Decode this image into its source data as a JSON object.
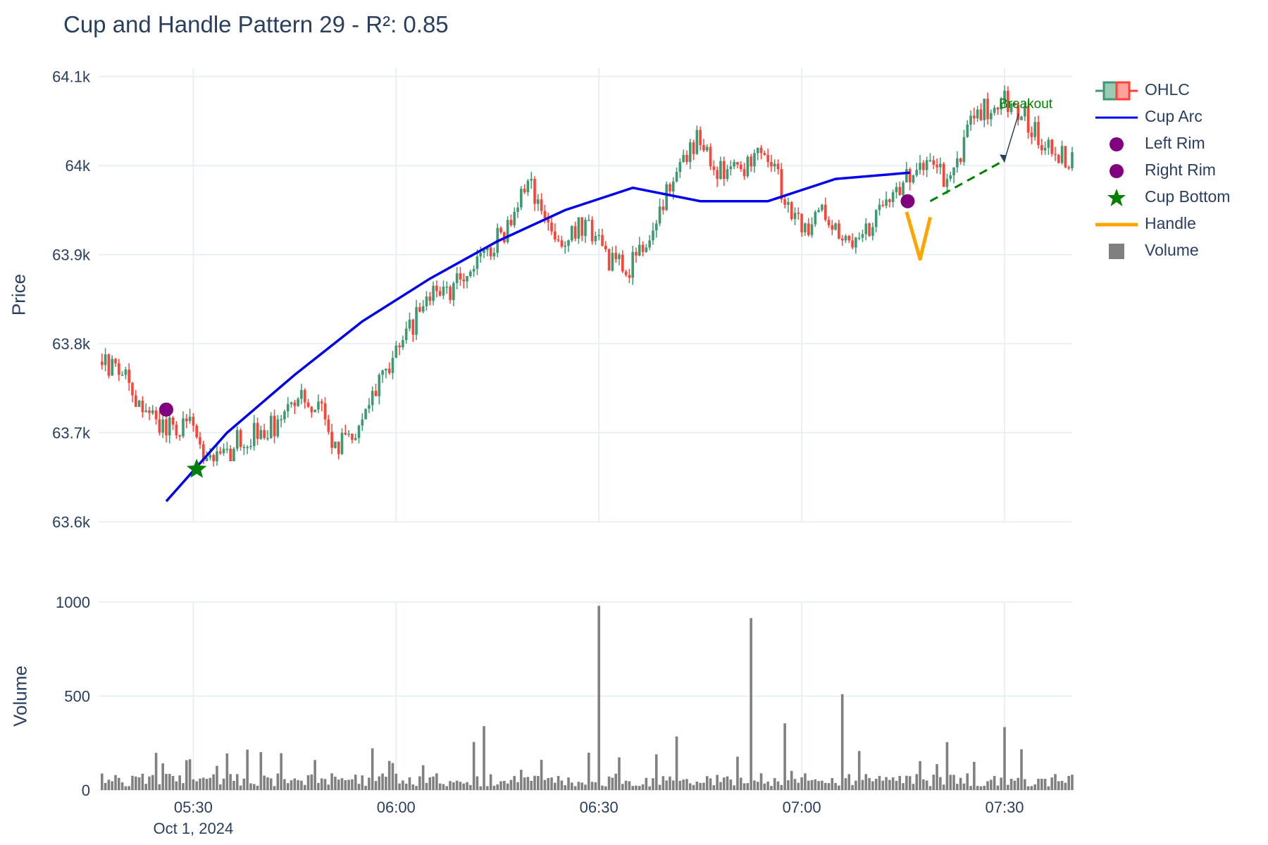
{
  "title": "Cup and Handle Pattern 29 - R²: 0.85",
  "colors": {
    "increasing": "#3d9970",
    "decreasing": "#ff4136",
    "cup_arc": "#0000ee",
    "rim": "#800080",
    "cup_bottom": "#008000",
    "handle": "#ffa500",
    "breakout": "#008000",
    "volume": "#808080",
    "grid": "#e5ecf6",
    "text": "#2a3f5f"
  },
  "legend": [
    {
      "name": "OHLC",
      "icon": "candlestick-icon"
    },
    {
      "name": "Cup Arc",
      "icon": "line-icon"
    },
    {
      "name": "Left Rim",
      "icon": "circle-marker-icon"
    },
    {
      "name": "Right Rim",
      "icon": "circle-marker-icon"
    },
    {
      "name": "Cup Bottom",
      "icon": "star-marker-icon"
    },
    {
      "name": "Handle",
      "icon": "line-icon"
    },
    {
      "name": "Volume",
      "icon": "square-icon"
    }
  ],
  "chart_data": {
    "type": "candlestick",
    "x_axis": {
      "type": "date",
      "range": [
        "2024-10-01 05:16",
        "2024-10-01 07:40"
      ],
      "ticks": [
        "05:30",
        "06:00",
        "06:30",
        "07:00",
        "07:30"
      ],
      "date_label": "Oct 1, 2024",
      "grid": true
    },
    "price_axis": {
      "label": "Price",
      "range": [
        63600,
        64110
      ],
      "ticks": [
        63600,
        63700,
        63800,
        63900,
        64000,
        64100
      ],
      "tick_labels": [
        "63.6k",
        "63.7k",
        "63.8k",
        "63.9k",
        "64k",
        "64.1k"
      ],
      "grid": true
    },
    "volume_axis": {
      "label": "Volume",
      "range": [
        0,
        1000
      ],
      "ticks": [
        0,
        500,
        1000
      ],
      "tick_labels": [
        "0",
        "500",
        "1000"
      ],
      "grid": true
    },
    "candle_start": "2024-10-01 05:16:30",
    "candle_interval_seconds": 30,
    "ohlc": [],
    "volume": [],
    "cup_arc": [
      {
        "x": "2024-10-01 05:26:00",
        "y": 63623
      },
      {
        "x": "2024-10-01 05:35:00",
        "y": 63700
      },
      {
        "x": "2024-10-01 05:45:00",
        "y": 63765
      },
      {
        "x": "2024-10-01 05:55:00",
        "y": 63825
      },
      {
        "x": "2024-10-01 06:05:00",
        "y": 63873
      },
      {
        "x": "2024-10-01 06:15:00",
        "y": 63915
      },
      {
        "x": "2024-10-01 06:25:00",
        "y": 63950
      },
      {
        "x": "2024-10-01 06:35:00",
        "y": 63975
      },
      {
        "x": "2024-10-01 06:45:00",
        "y": 63960
      },
      {
        "x": "2024-10-01 06:55:00",
        "y": 63960
      },
      {
        "x": "2024-10-01 07:05:00",
        "y": 63985
      },
      {
        "x": "2024-10-01 07:16:00",
        "y": 63992
      }
    ],
    "left_rim": {
      "x": "2024-10-01 05:26:00",
      "y": 63726
    },
    "right_rim": {
      "x": "2024-10-01 07:15:40",
      "y": 63960
    },
    "cup_bottom": {
      "x": "2024-10-01 05:30:30",
      "y": 63659
    },
    "handle": [
      {
        "x": "2024-10-01 07:15:30",
        "y": 63948
      },
      {
        "x": "2024-10-01 07:17:30",
        "y": 63895
      },
      {
        "x": "2024-10-01 07:19:00",
        "y": 63942
      }
    ],
    "breakout_line": [
      {
        "x": "2024-10-01 07:19:00",
        "y": 63960
      },
      {
        "x": "2024-10-01 07:30:00",
        "y": 64006
      }
    ],
    "annotation": {
      "text": "Breakout",
      "x": "2024-10-01 07:30:00",
      "y": 64003
    }
  }
}
